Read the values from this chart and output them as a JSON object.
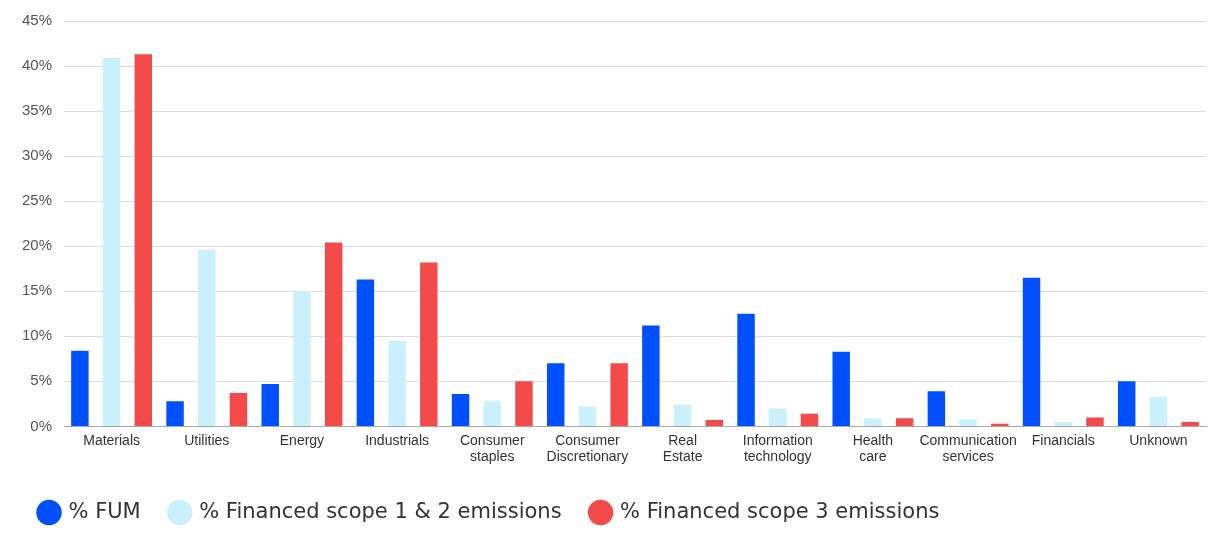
{
  "chart_data": {
    "type": "bar",
    "categories": [
      "Materials",
      "Utilities",
      "Energy",
      "Industrials",
      "Consumer staples",
      "Consumer Discretionary",
      "Real Estate",
      "Information technology",
      "Health care",
      "Communication services",
      "Financials",
      "Unknown"
    ],
    "series": [
      {
        "name": "% FUM",
        "color": "#0050ff",
        "values": [
          8.4,
          2.8,
          4.7,
          16.3,
          3.6,
          7.0,
          11.2,
          12.5,
          8.3,
          3.9,
          16.5,
          5.0
        ]
      },
      {
        "name": "% Financed scope 1 & 2 emissions",
        "color": "#c9f0fb",
        "values": [
          40.9,
          19.6,
          15.0,
          9.5,
          2.8,
          2.2,
          2.4,
          2.0,
          0.9,
          0.8,
          0.5,
          3.3
        ]
      },
      {
        "name": "% Financed scope 3 emissions",
        "color": "#f54a4a",
        "values": [
          41.3,
          3.7,
          20.4,
          18.2,
          5.0,
          7.0,
          0.7,
          1.4,
          0.9,
          0.3,
          1.0,
          0.5
        ]
      }
    ],
    "ylim": [
      0,
      45
    ],
    "yticks": [
      {
        "value": 0,
        "label": "0%"
      },
      {
        "value": 5,
        "label": "5%"
      },
      {
        "value": 10,
        "label": "10%"
      },
      {
        "value": 15,
        "label": "15%"
      },
      {
        "value": 20,
        "label": "20%"
      },
      {
        "value": 25,
        "label": "25%"
      },
      {
        "value": 30,
        "label": "30%"
      },
      {
        "value": 35,
        "label": "35%"
      },
      {
        "value": 40,
        "label": "40%"
      },
      {
        "value": 45,
        "label": "45%"
      }
    ],
    "grid": "y",
    "legend": "bottom left"
  }
}
